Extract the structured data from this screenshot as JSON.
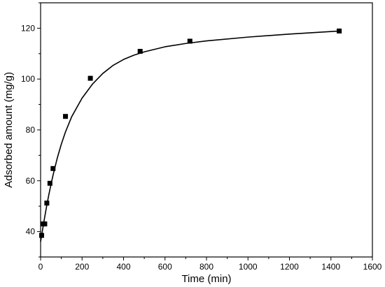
{
  "chart_data": {
    "type": "scatter",
    "xlabel": "Time (min)",
    "ylabel": "Adsorbed amount (mg/g)",
    "xlim": [
      0,
      1600
    ],
    "ylim": [
      30,
      130
    ],
    "xticks": [
      0,
      200,
      400,
      600,
      800,
      1000,
      1200,
      1400,
      1600
    ],
    "yticks": [
      40,
      60,
      80,
      100,
      120
    ],
    "grid": false,
    "legend": "none",
    "series": [
      {
        "marker": "square",
        "color": "#000000",
        "points": [
          {
            "x": 5,
            "y": 38.5
          },
          {
            "x": 10,
            "y": 43
          },
          {
            "x": 20,
            "y": 43
          },
          {
            "x": 30,
            "y": 51.2
          },
          {
            "x": 45,
            "y": 59
          },
          {
            "x": 60,
            "y": 64.8
          },
          {
            "x": 120,
            "y": 85.3
          },
          {
            "x": 240,
            "y": 100.3
          },
          {
            "x": 480,
            "y": 110.9
          },
          {
            "x": 720,
            "y": 114.9
          },
          {
            "x": 1440,
            "y": 118.9
          }
        ]
      },
      {
        "kind": "fitted-curve",
        "color": "#000000",
        "points": [
          {
            "x": 0,
            "y": 36
          },
          {
            "x": 10,
            "y": 41
          },
          {
            "x": 20,
            "y": 45.8
          },
          {
            "x": 30,
            "y": 50.4
          },
          {
            "x": 40,
            "y": 54.6
          },
          {
            "x": 50,
            "y": 58.5
          },
          {
            "x": 60,
            "y": 62.2
          },
          {
            "x": 80,
            "y": 68.8
          },
          {
            "x": 100,
            "y": 74.4
          },
          {
            "x": 120,
            "y": 79.2
          },
          {
            "x": 150,
            "y": 85.2
          },
          {
            "x": 200,
            "y": 92.5
          },
          {
            "x": 250,
            "y": 98.0
          },
          {
            "x": 300,
            "y": 102.2
          },
          {
            "x": 350,
            "y": 105.4
          },
          {
            "x": 400,
            "y": 107.7
          },
          {
            "x": 450,
            "y": 109.4
          },
          {
            "x": 500,
            "y": 110.7
          },
          {
            "x": 600,
            "y": 112.7
          },
          {
            "x": 700,
            "y": 114.0
          },
          {
            "x": 800,
            "y": 115.0
          },
          {
            "x": 1000,
            "y": 116.5
          },
          {
            "x": 1200,
            "y": 117.7
          },
          {
            "x": 1440,
            "y": 118.9
          }
        ]
      }
    ]
  }
}
